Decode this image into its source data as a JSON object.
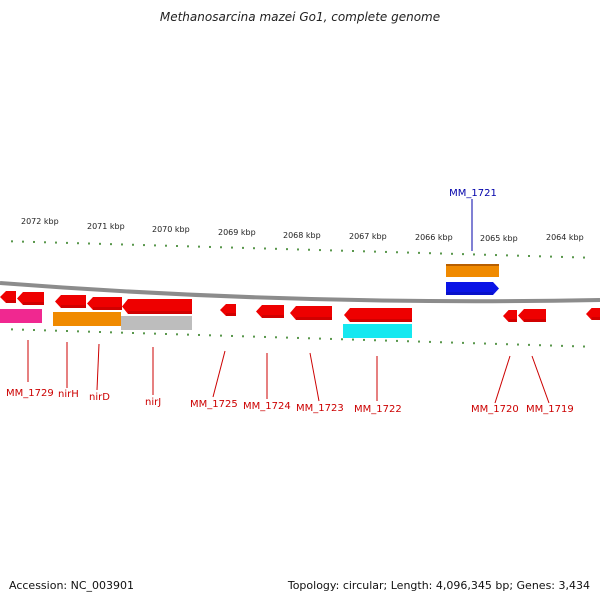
{
  "title": "Methanosarcina mazei Go1, complete genome",
  "footer": {
    "accession": "Accession: NC_003901",
    "summary": "Topology: circular; Length: 4,096,345 bp; Genes: 3,434"
  },
  "colors": {
    "backbone": "#8c8c8c",
    "tick": "#2f7d1f",
    "kbp_label": "#222222",
    "gene": "#ee0000",
    "gene_label": "#cc0000",
    "highlight_label": "#0000aa",
    "highlight_gene": "#0a14e6",
    "orange": "#f08a00",
    "gray": "#bdbdbd",
    "cyan": "#16e8f0",
    "magenta": "#f02890"
  },
  "kbp_labels": [
    "2072 kbp",
    "2071 kbp",
    "2070 kbp",
    "2069 kbp",
    "2068 kbp",
    "2067 kbp",
    "2066 kbp",
    "2065 kbp",
    "2064 kbp"
  ],
  "gene_labels": [
    "MM_1729",
    "nirH",
    "nirD",
    "nirJ",
    "MM_1725",
    "MM_1724",
    "MM_1723",
    "MM_1722",
    "MM_1720",
    "MM_1719"
  ],
  "highlight_label": "MM_1721"
}
